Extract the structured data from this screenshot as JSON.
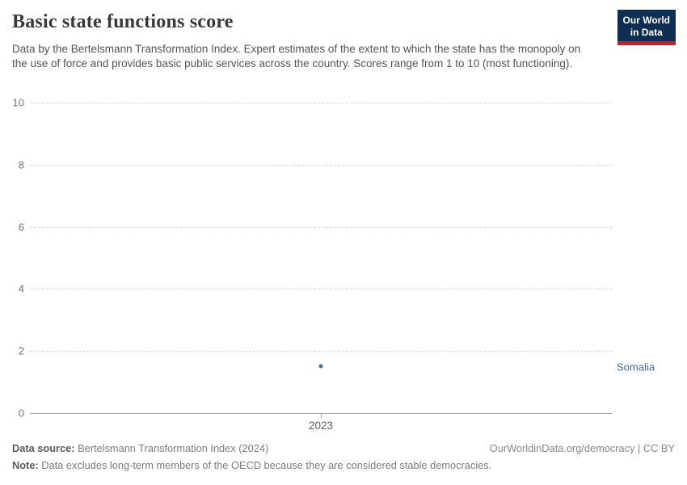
{
  "header": {
    "title": "Basic state functions score",
    "subtitle": "Data by the Bertelsmann Transformation Index. Expert estimates of the extent to which the state has the monopoly on the use of force and provides basic public services across the country. Scores range from 1 to 10 (most functioning).",
    "logo": {
      "line1": "Our World",
      "line2": "in Data",
      "bg_color": "#102d52",
      "accent_color": "#c5212b"
    }
  },
  "chart_data": {
    "type": "scatter",
    "title": "Basic state functions score",
    "x": [
      2023
    ],
    "series": [
      {
        "name": "Somalia",
        "values": [
          1.5
        ],
        "color": "#4567a4",
        "label_color": "#4c6a9c"
      }
    ],
    "xlabel": "",
    "ylabel": "",
    "ylim": [
      0,
      10
    ],
    "yticks": [
      0,
      2,
      4,
      6,
      8,
      10
    ],
    "ytick_labels": [
      "0",
      "2",
      "4",
      "6",
      "8",
      "10"
    ],
    "xticks": [
      "2023"
    ],
    "grid": "horizontal-dashed",
    "legend_position": "right-entity-label"
  },
  "footer": {
    "source_label": "Data source:",
    "source_text": " Bertelsmann Transformation Index (2024)",
    "rights": "OurWorldinData.org/democracy | CC BY",
    "note_label": "Note:",
    "note_text": " Data excludes long-term members of the OECD because they are considered stable democracies."
  }
}
